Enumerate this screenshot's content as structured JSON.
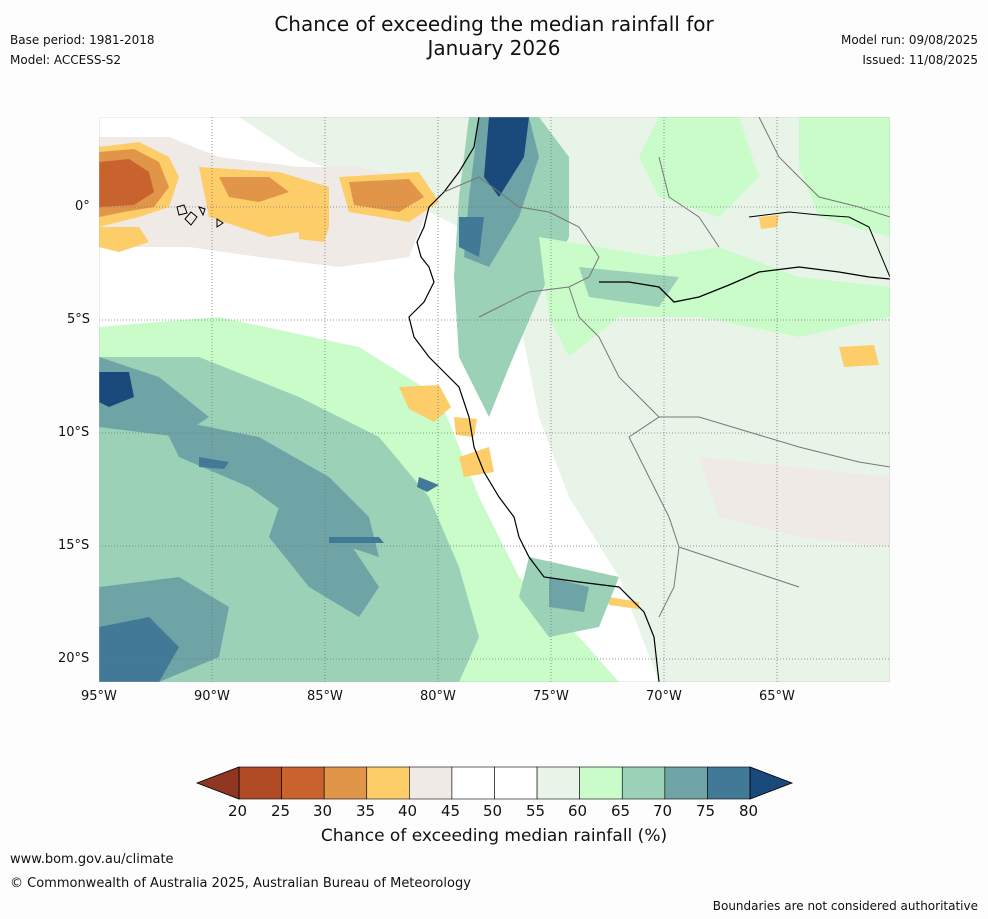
{
  "header": {
    "title_line1": "Chance of exceeding the median rainfall for",
    "title_line2": "January 2026",
    "base_period": "Base period: 1981-2018",
    "model": "Model: ACCESS-S2",
    "model_run": "Model run: 09/08/2025",
    "issued": "Issued: 11/08/2025"
  },
  "map": {
    "lat_labels": [
      "0°",
      "5°S",
      "10°S",
      "15°S",
      "20°S"
    ],
    "lon_labels": [
      "95°W",
      "90°W",
      "85°W",
      "80°W",
      "75°W",
      "70°W",
      "65°W"
    ]
  },
  "colorbar": {
    "ticks": [
      "20",
      "25",
      "30",
      "35",
      "40",
      "45",
      "50",
      "55",
      "60",
      "65",
      "70",
      "75",
      "80"
    ],
    "colors": [
      "#b04a25",
      "#c9632e",
      "#e09548",
      "#fdcd6a",
      "#efeae6",
      "#ffffff",
      "#ffffff",
      "#e9f4e8",
      "#c9fcc9",
      "#9bd1b6",
      "#6fa4a6",
      "#427997"
    ],
    "low_color": "#8f3520",
    "high_color": "#1a4a7c",
    "label": "Chance of exceeding median rainfall (%)"
  },
  "footer": {
    "url": "www.bom.gov.au/climate",
    "copyright": "© Commonwealth of Australia 2025, Australian Bureau of Meteorology",
    "disclaimer": "Boundaries are not considered authoritative"
  }
}
